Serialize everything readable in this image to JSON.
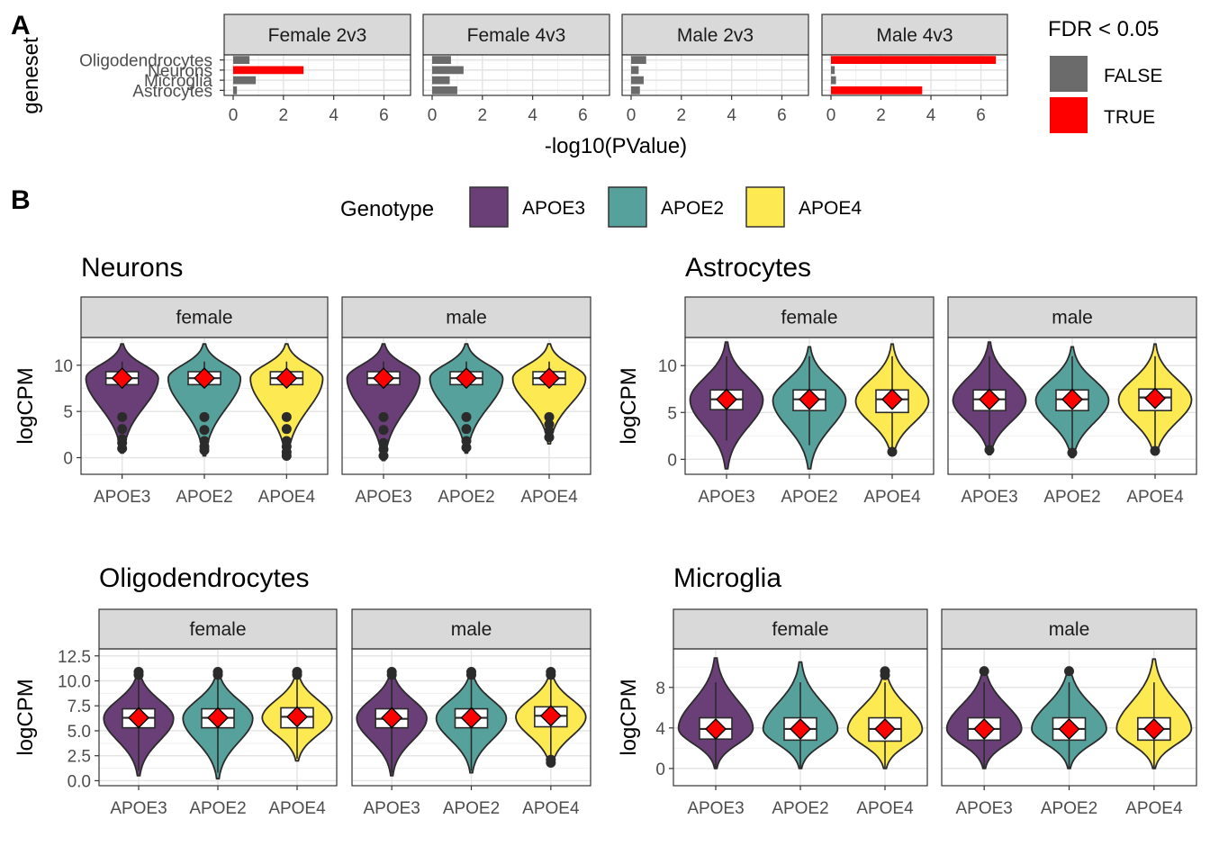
{
  "panel_labels": {
    "a": "A",
    "b": "B"
  },
  "legend_fdr": {
    "title": "FDR < 0.05",
    "items": [
      {
        "label": "FALSE",
        "color": "#6b6b6b"
      },
      {
        "label": "TRUE",
        "color": "#ff0000"
      }
    ]
  },
  "legend_genotype": {
    "title": "Genotype",
    "items": [
      {
        "label": "APOE3",
        "color": "#6a3f78"
      },
      {
        "label": "APOE2",
        "color": "#56a19b"
      },
      {
        "label": "APOE4",
        "color": "#fde951"
      }
    ]
  },
  "chart_data": [
    {
      "type": "bar",
      "orientation": "horizontal",
      "xlabel": "-log10(PValue)",
      "ylabel": "geneset",
      "xlim": [
        0,
        6.7
      ],
      "x_ticks": [
        "0",
        "2",
        "4",
        "6"
      ],
      "categories": [
        "Oligodendrocytes",
        "Neurons",
        "Microglia",
        "Astrocytes"
      ],
      "facets": [
        {
          "name": "Female 2v3",
          "values": [
            0.65,
            2.8,
            0.9,
            0.15
          ],
          "fdr": [
            false,
            true,
            false,
            false
          ]
        },
        {
          "name": "Female 4v3",
          "values": [
            0.75,
            1.25,
            0.7,
            1.0
          ],
          "fdr": [
            false,
            false,
            false,
            false
          ]
        },
        {
          "name": "Male 2v3",
          "values": [
            0.6,
            0.3,
            0.5,
            0.35
          ],
          "fdr": [
            false,
            false,
            false,
            false
          ]
        },
        {
          "name": "Male 4v3",
          "values": [
            6.6,
            0.15,
            0.2,
            3.65
          ],
          "fdr": [
            true,
            false,
            false,
            true
          ]
        }
      ]
    },
    {
      "type": "violin",
      "title": "Neurons",
      "ylabel": "logCPM",
      "ylim": [
        -1.8,
        13.0
      ],
      "y_ticks": [
        0,
        5,
        10
      ],
      "y_tick_labels": [
        "0",
        "5",
        "10"
      ],
      "categories": [
        "APOE3",
        "APOE2",
        "APOE4"
      ],
      "facets": [
        {
          "name": "female",
          "groups": [
            {
              "genotype": "APOE3",
              "q1": 7.9,
              "median": 8.6,
              "q3": 9.3,
              "mean": 8.6,
              "min": 0.5,
              "max": 12.3,
              "lw": 7.8,
              "uw": 10.4,
              "outliers": [
                4.4,
                3.1,
                2.0,
                1.6,
                1.0
              ]
            },
            {
              "genotype": "APOE2",
              "q1": 7.9,
              "median": 8.6,
              "q3": 9.3,
              "mean": 8.6,
              "min": 0.2,
              "max": 12.3,
              "lw": 7.8,
              "uw": 10.4,
              "outliers": [
                4.4,
                3.0,
                1.8,
                1.2,
                0.8
              ]
            },
            {
              "genotype": "APOE4",
              "q1": 7.9,
              "median": 8.6,
              "q3": 9.3,
              "mean": 8.6,
              "min": 0.0,
              "max": 12.3,
              "lw": 7.8,
              "uw": 10.4,
              "outliers": [
                4.4,
                3.1,
                1.8,
                1.2,
                0.6,
                0.2
              ]
            }
          ]
        },
        {
          "name": "male",
          "groups": [
            {
              "genotype": "APOE3",
              "q1": 7.9,
              "median": 8.6,
              "q3": 9.3,
              "mean": 8.6,
              "min": -0.3,
              "max": 12.3,
              "lw": 7.8,
              "uw": 10.4,
              "outliers": [
                4.4,
                3.0,
                1.6,
                0.9,
                0.2
              ]
            },
            {
              "genotype": "APOE2",
              "q1": 7.9,
              "median": 8.6,
              "q3": 9.3,
              "mean": 8.6,
              "min": 0.5,
              "max": 12.3,
              "lw": 7.8,
              "uw": 10.4,
              "outliers": [
                4.4,
                3.1,
                1.8,
                1.1
              ]
            },
            {
              "genotype": "APOE4",
              "q1": 7.9,
              "median": 8.6,
              "q3": 9.3,
              "mean": 8.6,
              "min": 1.5,
              "max": 12.3,
              "lw": 7.8,
              "uw": 10.4,
              "outliers": [
                4.4,
                3.6,
                2.9,
                2.2
              ]
            }
          ]
        }
      ]
    },
    {
      "type": "violin",
      "title": "Astrocytes",
      "ylabel": "logCPM",
      "ylim": [
        -1.6,
        13.0
      ],
      "y_ticks": [
        0,
        5,
        10
      ],
      "y_tick_labels": [
        "0",
        "5",
        "10"
      ],
      "categories": [
        "APOE3",
        "APOE2",
        "APOE4"
      ],
      "facets": [
        {
          "name": "female",
          "groups": [
            {
              "genotype": "APOE3",
              "q1": 5.3,
              "median": 6.4,
              "q3": 7.4,
              "mean": 6.4,
              "min": -1.0,
              "max": 12.5,
              "lw": 2.0,
              "uw": 11.0,
              "outliers": []
            },
            {
              "genotype": "APOE2",
              "q1": 5.2,
              "median": 6.4,
              "q3": 7.4,
              "mean": 6.4,
              "min": -1.0,
              "max": 12.0,
              "lw": 1.5,
              "uw": 11.0,
              "outliers": []
            },
            {
              "genotype": "APOE4",
              "q1": 5.0,
              "median": 6.4,
              "q3": 7.4,
              "mean": 6.4,
              "min": 0.5,
              "max": 12.3,
              "lw": 1.2,
              "uw": 11.0,
              "outliers": [
                0.8
              ]
            }
          ]
        },
        {
          "name": "male",
          "groups": [
            {
              "genotype": "APOE3",
              "q1": 5.2,
              "median": 6.4,
              "q3": 7.4,
              "mean": 6.4,
              "min": 0.5,
              "max": 12.5,
              "lw": 1.5,
              "uw": 11.0,
              "outliers": [
                1.0
              ]
            },
            {
              "genotype": "APOE2",
              "q1": 5.2,
              "median": 6.4,
              "q3": 7.4,
              "mean": 6.4,
              "min": 0.2,
              "max": 12.0,
              "lw": 1.2,
              "uw": 11.0,
              "outliers": [
                0.7
              ]
            },
            {
              "genotype": "APOE4",
              "q1": 5.2,
              "median": 6.6,
              "q3": 7.5,
              "mean": 6.5,
              "min": 0.5,
              "max": 12.3,
              "lw": 1.4,
              "uw": 11.0,
              "outliers": [
                0.9
              ]
            }
          ]
        }
      ]
    },
    {
      "type": "violin",
      "title": "Oligodendrocytes",
      "ylabel": "logCPM",
      "ylim": [
        -0.5,
        13.2
      ],
      "y_ticks": [
        0,
        2.5,
        5,
        7.5,
        10,
        12.5
      ],
      "y_tick_labels": [
        "0.0",
        "2.5",
        "5.0",
        "7.5",
        "10.0",
        "12.5"
      ],
      "categories": [
        "APOE3",
        "APOE2",
        "APOE4"
      ],
      "facets": [
        {
          "name": "female",
          "groups": [
            {
              "genotype": "APOE3",
              "q1": 5.3,
              "median": 6.3,
              "q3": 7.2,
              "mean": 6.3,
              "min": 0.5,
              "max": 11.0,
              "lw": 1.0,
              "uw": 10.3,
              "outliers": [
                10.6,
                10.9
              ]
            },
            {
              "genotype": "APOE2",
              "q1": 5.3,
              "median": 6.3,
              "q3": 7.2,
              "mean": 6.3,
              "min": 0.2,
              "max": 11.0,
              "lw": 0.8,
              "uw": 10.3,
              "outliers": [
                10.6,
                10.9
              ]
            },
            {
              "genotype": "APOE4",
              "q1": 5.3,
              "median": 6.4,
              "q3": 7.3,
              "mean": 6.4,
              "min": 2.0,
              "max": 11.0,
              "lw": 2.2,
              "uw": 10.3,
              "outliers": [
                10.6,
                10.9
              ]
            }
          ]
        },
        {
          "name": "male",
          "groups": [
            {
              "genotype": "APOE3",
              "q1": 5.3,
              "median": 6.2,
              "q3": 7.2,
              "mean": 6.3,
              "min": 0.5,
              "max": 11.0,
              "lw": 0.8,
              "uw": 10.3,
              "outliers": [
                10.6,
                10.9
              ]
            },
            {
              "genotype": "APOE2",
              "q1": 5.3,
              "median": 6.3,
              "q3": 7.2,
              "mean": 6.3,
              "min": 0.8,
              "max": 11.0,
              "lw": 1.0,
              "uw": 10.3,
              "outliers": [
                10.6,
                10.9
              ]
            },
            {
              "genotype": "APOE4",
              "q1": 5.4,
              "median": 6.5,
              "q3": 7.4,
              "mean": 6.5,
              "min": 1.5,
              "max": 11.0,
              "lw": 2.4,
              "uw": 10.3,
              "outliers": [
                1.8,
                2.1,
                10.6,
                10.9
              ]
            }
          ]
        }
      ]
    },
    {
      "type": "violin",
      "title": "Microglia",
      "ylabel": "logCPM",
      "ylim": [
        -1.7,
        11.8
      ],
      "y_ticks": [
        0,
        4,
        8
      ],
      "y_tick_labels": [
        "0",
        "4",
        "8"
      ],
      "categories": [
        "APOE3",
        "APOE2",
        "APOE4"
      ],
      "facets": [
        {
          "name": "female",
          "groups": [
            {
              "genotype": "APOE3",
              "q1": 2.9,
              "median": 3.9,
              "q3": 5.0,
              "mean": 3.9,
              "min": 0.0,
              "max": 10.9,
              "lw": 0.0,
              "uw": 8.5,
              "outliers": []
            },
            {
              "genotype": "APOE2",
              "q1": 2.8,
              "median": 3.9,
              "q3": 5.0,
              "mean": 3.9,
              "min": 0.0,
              "max": 10.5,
              "lw": 0.0,
              "uw": 8.5,
              "outliers": []
            },
            {
              "genotype": "APOE4",
              "q1": 2.7,
              "median": 3.9,
              "q3": 5.0,
              "mean": 3.9,
              "min": 0.0,
              "max": 9.8,
              "lw": 0.0,
              "uw": 8.5,
              "outliers": [
                9.2,
                9.6
              ]
            }
          ]
        },
        {
          "name": "male",
          "groups": [
            {
              "genotype": "APOE3",
              "q1": 2.8,
              "median": 3.9,
              "q3": 5.0,
              "mean": 3.9,
              "min": 0.0,
              "max": 10.0,
              "lw": 0.0,
              "uw": 8.5,
              "outliers": [
                9.6
              ]
            },
            {
              "genotype": "APOE2",
              "q1": 2.8,
              "median": 3.9,
              "q3": 5.0,
              "mean": 3.9,
              "min": 0.0,
              "max": 10.0,
              "lw": 0.0,
              "uw": 8.5,
              "outliers": [
                9.6
              ]
            },
            {
              "genotype": "APOE4",
              "q1": 2.8,
              "median": 3.9,
              "q3": 5.0,
              "mean": 3.9,
              "min": 0.0,
              "max": 10.8,
              "lw": 0.0,
              "uw": 8.5,
              "outliers": []
            }
          ]
        }
      ]
    }
  ]
}
